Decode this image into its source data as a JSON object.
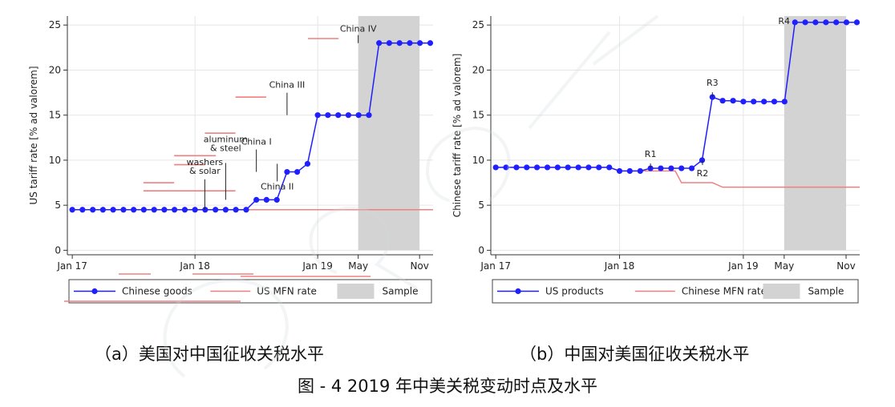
{
  "chart_data": [
    {
      "type": "line",
      "panel": "a",
      "ylabel": "US tariff rate [% ad valorem]",
      "xlabel": "",
      "xticks": [
        "Jan 17",
        "Jan 18",
        "Jan 19",
        "May",
        "Nov"
      ],
      "yticks": [
        0,
        5,
        10,
        15,
        20,
        25
      ],
      "ylim": [
        -0.5,
        26
      ],
      "xlim": [
        2016.96,
        2019.94
      ],
      "grid": true,
      "legend": {
        "position": "bottom",
        "entries": [
          "Chinese goods",
          "US MFN rate",
          "Sample"
        ]
      },
      "shaded_sample": [
        2019.33,
        2019.83
      ],
      "series": [
        {
          "name": "Chinese goods",
          "color": "#1f1fff",
          "x": [
            2017.0,
            2017.083,
            2017.167,
            2017.25,
            2017.333,
            2017.417,
            2017.5,
            2017.583,
            2017.667,
            2017.75,
            2017.833,
            2017.917,
            2018.0,
            2018.083,
            2018.167,
            2018.25,
            2018.333,
            2018.417,
            2018.5,
            2018.583,
            2018.667,
            2018.75,
            2018.833,
            2018.917,
            2019.0,
            2019.083,
            2019.167,
            2019.25,
            2019.333,
            2019.417,
            2019.5,
            2019.583,
            2019.667,
            2019.75,
            2019.833,
            2019.917
          ],
          "y": [
            4.5,
            4.5,
            4.5,
            4.5,
            4.5,
            4.5,
            4.5,
            4.5,
            4.5,
            4.5,
            4.5,
            4.5,
            4.5,
            4.5,
            4.5,
            4.5,
            4.5,
            4.5,
            5.6,
            5.6,
            5.6,
            8.7,
            8.7,
            9.6,
            15,
            15,
            15,
            15,
            15,
            15,
            23,
            23,
            23,
            23,
            23,
            23
          ]
        },
        {
          "name": "US MFN rate",
          "color": "#f08080",
          "x": [
            2017.0,
            2019.94
          ],
          "y": [
            4.5,
            4.5
          ]
        }
      ],
      "product_segments": [
        {
          "x": [
            2017.58,
            2017.83
          ],
          "y": 7.5
        },
        {
          "x": [
            2017.58,
            2018.33
          ],
          "y": 6.6
        },
        {
          "x": [
            2017.83,
            2018.17
          ],
          "y": 10.5
        },
        {
          "x": [
            2017.83,
            2018.08
          ],
          "y": 9.5
        },
        {
          "x": [
            2018.08,
            2018.33
          ],
          "y": 13
        },
        {
          "x": [
            2018.33,
            2018.58
          ],
          "y": 17
        },
        {
          "x": [
            2018.92,
            2019.17
          ],
          "y": 23.5
        }
      ],
      "annotations": [
        {
          "text": "washers",
          "text2": "& solar",
          "x": 2018.08,
          "y": 4.5
        },
        {
          "text": "aluminum",
          "text2": "& steel",
          "x": 2018.25,
          "y": 5.6
        },
        {
          "text": "China I",
          "x": 2018.5,
          "y": 8.7
        },
        {
          "text": "China II",
          "x": 2018.67,
          "y": 9.6
        },
        {
          "text": "China III",
          "x": 2018.75,
          "y": 15
        },
        {
          "text": "China IV",
          "x": 2019.33,
          "y": 23
        }
      ]
    },
    {
      "type": "line",
      "panel": "b",
      "ylabel": "Chinese tariff rate [% ad valorem]",
      "xlabel": "",
      "xticks": [
        "Jan 17",
        "Jan 18",
        "Jan 19",
        "May",
        "Nov"
      ],
      "yticks": [
        0,
        5,
        10,
        15,
        20,
        25
      ],
      "ylim": [
        -0.5,
        26
      ],
      "xlim": [
        2016.96,
        2019.94
      ],
      "grid": true,
      "legend": {
        "position": "bottom",
        "entries": [
          "US products",
          "Chinese MFN rate",
          "Sample"
        ]
      },
      "shaded_sample": [
        2019.33,
        2019.83
      ],
      "series": [
        {
          "name": "US products",
          "color": "#1f1fff",
          "x": [
            2017.0,
            2017.083,
            2017.167,
            2017.25,
            2017.333,
            2017.417,
            2017.5,
            2017.583,
            2017.667,
            2017.75,
            2017.833,
            2017.917,
            2018.0,
            2018.083,
            2018.167,
            2018.25,
            2018.333,
            2018.417,
            2018.5,
            2018.583,
            2018.667,
            2018.75,
            2018.833,
            2018.917,
            2019.0,
            2019.083,
            2019.167,
            2019.25,
            2019.333,
            2019.417,
            2019.5,
            2019.583,
            2019.667,
            2019.75,
            2019.833,
            2019.917
          ],
          "y": [
            9.2,
            9.2,
            9.2,
            9.2,
            9.2,
            9.2,
            9.2,
            9.2,
            9.2,
            9.2,
            9.2,
            9.2,
            8.8,
            8.8,
            8.8,
            9.1,
            9.1,
            9.1,
            9.1,
            9.1,
            10.0,
            17.0,
            16.6,
            16.6,
            16.5,
            16.5,
            16.5,
            16.5,
            16.5,
            25.3,
            25.3,
            25.3,
            25.3,
            25.3,
            25.3,
            25.3
          ]
        },
        {
          "name": "Chinese MFN rate",
          "color": "#f08080",
          "x": [
            2017.0,
            2017.917,
            2018.0,
            2018.25,
            2018.45,
            2018.5,
            2018.75,
            2018.833,
            2019.94
          ],
          "y": [
            9.2,
            9.2,
            8.8,
            8.8,
            8.8,
            7.5,
            7.5,
            7.0,
            7.0
          ]
        }
      ],
      "annotations": [
        {
          "text": "R1",
          "x": 2018.25,
          "y": 9.1
        },
        {
          "text": "R2",
          "x": 2018.67,
          "y": 10.0
        },
        {
          "text": "R3",
          "x": 2018.75,
          "y": 17.0
        },
        {
          "text": "R4",
          "x": 2019.42,
          "y": 25.3
        }
      ]
    }
  ],
  "captions": {
    "a": "（a）美国对中国征收关税水平",
    "b": "（b）中国对美国征收关税水平",
    "figure": "图 - 4 2019 年中美关税变动时点及水平"
  },
  "colors": {
    "series": "#1f1fff",
    "mfn": "#f08080",
    "sample": "#d3d3d3",
    "grid": "#e6e6e6"
  }
}
